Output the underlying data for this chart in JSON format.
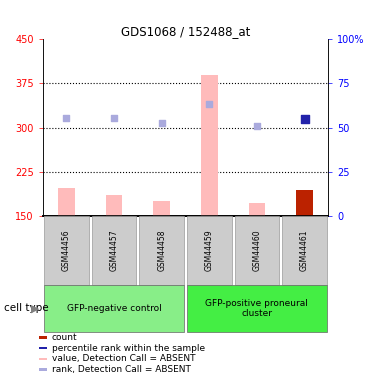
{
  "title": "GDS1068 / 152488_at",
  "samples": [
    "GSM44456",
    "GSM44457",
    "GSM44458",
    "GSM44459",
    "GSM44460",
    "GSM44461"
  ],
  "ylim_left": [
    150,
    450
  ],
  "ylim_right": [
    0,
    100
  ],
  "yticks_left": [
    150,
    225,
    300,
    375,
    450
  ],
  "yticks_right": [
    0,
    25,
    50,
    75,
    100
  ],
  "value_bars": [
    197,
    185,
    175,
    390,
    172,
    193
  ],
  "value_bar_colors": [
    "#ffbbbb",
    "#ffbbbb",
    "#ffbbbb",
    "#ffbbbb",
    "#ffbbbb",
    "#bb2200"
  ],
  "rank_dots": [
    317,
    317,
    308,
    340,
    303,
    315
  ],
  "rank_dot_colors": [
    "#aaaadd",
    "#aaaadd",
    "#aaaadd",
    "#aaaadd",
    "#aaaadd",
    "#2222aa"
  ],
  "rank_dot_sizes": [
    22,
    22,
    22,
    22,
    22,
    28
  ],
  "groups": [
    {
      "label": "GFP-negative control",
      "samples_idx": [
        0,
        1,
        2
      ],
      "color": "#88ee88"
    },
    {
      "label": "GFP-positive proneural\ncluster",
      "samples_idx": [
        3,
        4,
        5
      ],
      "color": "#44ee44"
    }
  ],
  "cell_type_label": "cell type",
  "legend_items": [
    {
      "color": "#bb2200",
      "label": "count"
    },
    {
      "color": "#2222aa",
      "label": "percentile rank within the sample"
    },
    {
      "color": "#ffbbbb",
      "label": "value, Detection Call = ABSENT"
    },
    {
      "color": "#aaaadd",
      "label": "rank, Detection Call = ABSENT"
    }
  ],
  "dotted_lines": [
    225,
    300,
    375
  ],
  "bar_width": 0.35
}
